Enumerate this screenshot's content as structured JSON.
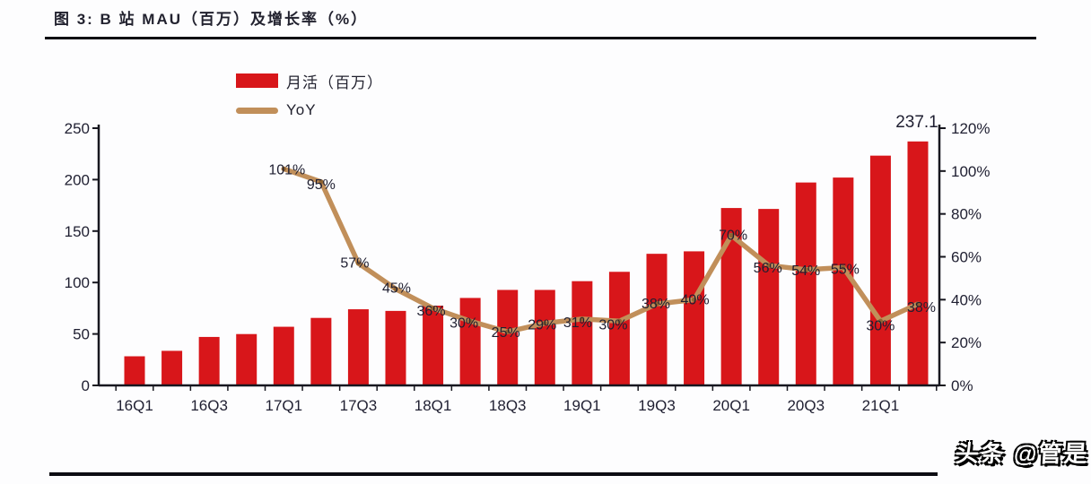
{
  "header": {
    "title": "图 3: B 站 MAU（百万）及增长率（%）"
  },
  "legend": {
    "items": [
      {
        "label": "月活（百万）",
        "type": "bar"
      },
      {
        "label": "YoY",
        "type": "line"
      }
    ]
  },
  "watermark": {
    "text": "头条 @管是"
  },
  "colors": {
    "bar": "#d8161a",
    "line": "#c18f5a",
    "line_marker": "#8f6331",
    "text": "#1f1f31",
    "axis": "#17171f"
  },
  "chart_data": {
    "type": "bar",
    "overlay": "line",
    "title": "B 站 MAU（百万）及增长率（%）",
    "grid": false,
    "legend_position": "top-left-inside",
    "categories": [
      "16Q1",
      "16Q2",
      "16Q3",
      "16Q4",
      "17Q1",
      "17Q2",
      "17Q3",
      "17Q4",
      "18Q1",
      "18Q2",
      "18Q3",
      "18Q4",
      "19Q1",
      "19Q2",
      "19Q3",
      "19Q4",
      "20Q1",
      "20Q2",
      "20Q3",
      "20Q4",
      "21Q1",
      "21Q2"
    ],
    "x_axis_tick_labels": [
      "16Q1",
      "16Q3",
      "17Q1",
      "17Q3",
      "18Q1",
      "18Q3",
      "19Q1",
      "19Q3",
      "20Q1",
      "20Q3",
      "21Q1"
    ],
    "series": [
      {
        "name": "月活（百万）",
        "type": "bar",
        "axis": "left",
        "values": [
          28.3,
          33.6,
          47.1,
          49.9,
          57.0,
          65.6,
          74.0,
          72.4,
          77.5,
          85.0,
          92.8,
          92.8,
          101.3,
          110.4,
          127.9,
          130.3,
          172.4,
          171.5,
          197.2,
          202.0,
          223.3,
          237.1
        ]
      },
      {
        "name": "YoY",
        "type": "line",
        "axis": "right",
        "start_category": "17Q1",
        "values_percent": [
          101,
          95,
          57,
          45,
          36,
          30,
          25,
          29,
          31,
          30,
          38,
          40,
          70,
          56,
          54,
          55,
          30,
          38
        ],
        "point_labels": [
          "101%",
          "95%",
          "57%",
          "45%",
          "36%",
          "30%",
          "25%",
          "29%",
          "31%",
          "30%",
          "38%",
          "40%",
          "70%",
          "56%",
          "54%",
          "55%",
          "30%",
          "38%"
        ]
      }
    ],
    "bar_value_label": {
      "category": "21Q2",
      "text": "237.1"
    },
    "left_axis": {
      "range": [
        0,
        250
      ],
      "tick_labels": [
        "0",
        "50",
        "100",
        "150",
        "200",
        "250"
      ]
    },
    "right_axis": {
      "range_percent": [
        0,
        120
      ],
      "tick_labels": [
        "0%",
        "20%",
        "40%",
        "60%",
        "80%",
        "100%",
        "120%"
      ]
    }
  }
}
